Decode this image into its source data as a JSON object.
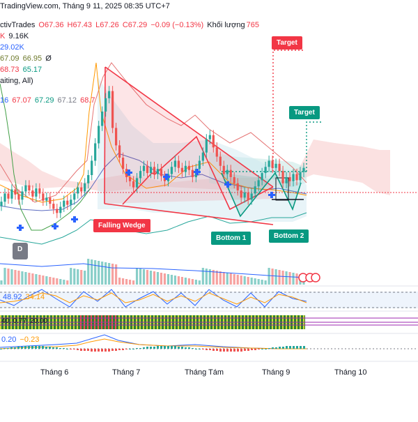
{
  "header": {
    "source": "TradingView.com, Tháng 9 11, 2025 08:35 UTC+7",
    "symbol": "ctivTrades",
    "open": "O67.36",
    "high": "H67.43",
    "low": "L67.26",
    "close": "C67.29",
    "change": "−0.09 (−0.13%)",
    "volume_label": "Khối lượng",
    "volume_value": "765",
    "row2_a": "K",
    "row2_b": "9.16K",
    "row3": "29.02K",
    "row4_a": "67.09",
    "row4_b": "66.95",
    "row4_c": "Ø",
    "row5_a": "68.73",
    "row5_b": "65.17",
    "row6": "aiting, All)",
    "row7_a": "16",
    "row7_b": "67.07",
    "row7_c": "67.29",
    "row7_d": "67.12",
    "row7_e": "68.7"
  },
  "colors": {
    "bull": "#26a69a",
    "bear": "#ef5350",
    "pattern": "#f23645",
    "target1": "#f23645",
    "target2": "#089981",
    "bottom": "#089981"
  },
  "annotations": {
    "wedge_label": "Falling Wedge",
    "bottom1": "Bottom 1",
    "bottom2": "Bottom 2",
    "target_red": "Target",
    "target_green": "Target",
    "d_marker": "D"
  },
  "oscillators": {
    "stoch_a": "48.92",
    "stoch_b": "34.14",
    "mid_a": "40, 0.77",
    "mid_b": "20.00",
    "macd_a": "0.20",
    "macd_b": "−0.23"
  },
  "chart_data": {
    "type": "candlestick",
    "x_ticks": [
      "Tháng 6",
      "Tháng 7",
      "Tháng Tám",
      "Tháng 9",
      "Tháng 10"
    ],
    "series": [
      {
        "values": [
          63.8,
          64.6,
          64.1,
          65.0,
          64.5,
          64.0,
          64.8,
          65.4,
          64.9,
          64.3,
          65.1,
          64.6,
          63.9,
          64.2,
          63.6,
          63.1,
          62.7,
          63.3,
          63.9,
          63.5,
          64.0,
          64.6,
          65.2,
          64.8,
          65.6,
          66.4,
          67.8,
          69.5,
          71.2,
          72.6,
          73.9,
          74.6,
          71.0,
          69.3,
          68.1,
          67.0,
          66.2,
          65.8,
          65.2,
          66.1,
          66.8,
          67.3,
          66.6,
          67.2,
          66.5,
          67.0,
          66.3,
          65.8,
          66.5,
          67.2,
          67.8,
          67.1,
          66.7,
          67.3,
          66.9,
          66.2,
          67.0,
          67.8,
          68.6,
          69.9,
          70.3,
          69.1,
          68.2,
          67.3,
          66.5,
          66.9,
          66.2,
          65.6,
          64.9,
          64.2,
          64.7,
          64.0,
          64.6,
          65.3,
          65.9,
          66.6,
          67.2,
          67.8,
          67.1,
          67.5,
          66.8,
          65.6,
          66.2,
          65.8,
          66.5,
          65.9,
          66.7,
          67.1
        ]
      }
    ]
  }
}
